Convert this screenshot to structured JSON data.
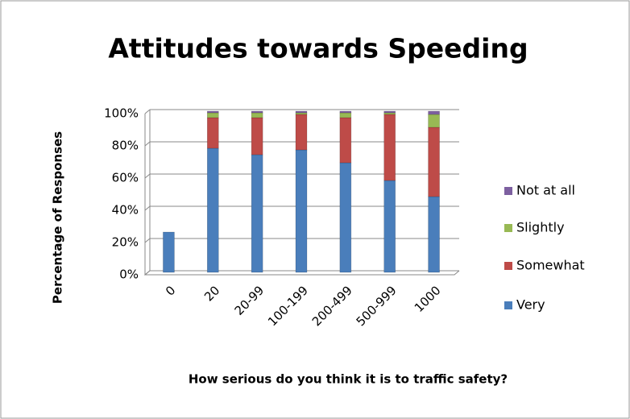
{
  "chart_data": {
    "type": "stacked_bar",
    "title": "Attitudes towards Speeding",
    "x_label": "How serious do you think it is to traffic safety?",
    "y_label": "Percentage of Responses",
    "categories": [
      "0",
      "20",
      "20-99",
      "100-199",
      "200-499",
      "500-999",
      "1000"
    ],
    "series": [
      {
        "name": "Very",
        "color": "#4a7ebb",
        "values": [
          25,
          77,
          73,
          76,
          68,
          57,
          47
        ]
      },
      {
        "name": "Somewhat",
        "color": "#be4b48",
        "values": [
          0,
          19,
          23,
          22,
          28,
          41,
          43
        ]
      },
      {
        "name": "Slightly",
        "color": "#98b954",
        "values": [
          0,
          3,
          3,
          1,
          3,
          1,
          8
        ]
      },
      {
        "name": "Not at all",
        "color": "#7d60a0",
        "values": [
          0,
          1,
          1,
          1,
          1,
          1,
          2
        ]
      }
    ],
    "ylim": [
      0,
      100
    ],
    "yticks": [
      {
        "value": 0,
        "label": "0%"
      },
      {
        "value": 20,
        "label": "20%"
      },
      {
        "value": 40,
        "label": "40%"
      },
      {
        "value": 60,
        "label": "60%"
      },
      {
        "value": 80,
        "label": "80%"
      },
      {
        "value": 100,
        "label": "100%"
      }
    ],
    "grid": true,
    "legend": "right"
  }
}
